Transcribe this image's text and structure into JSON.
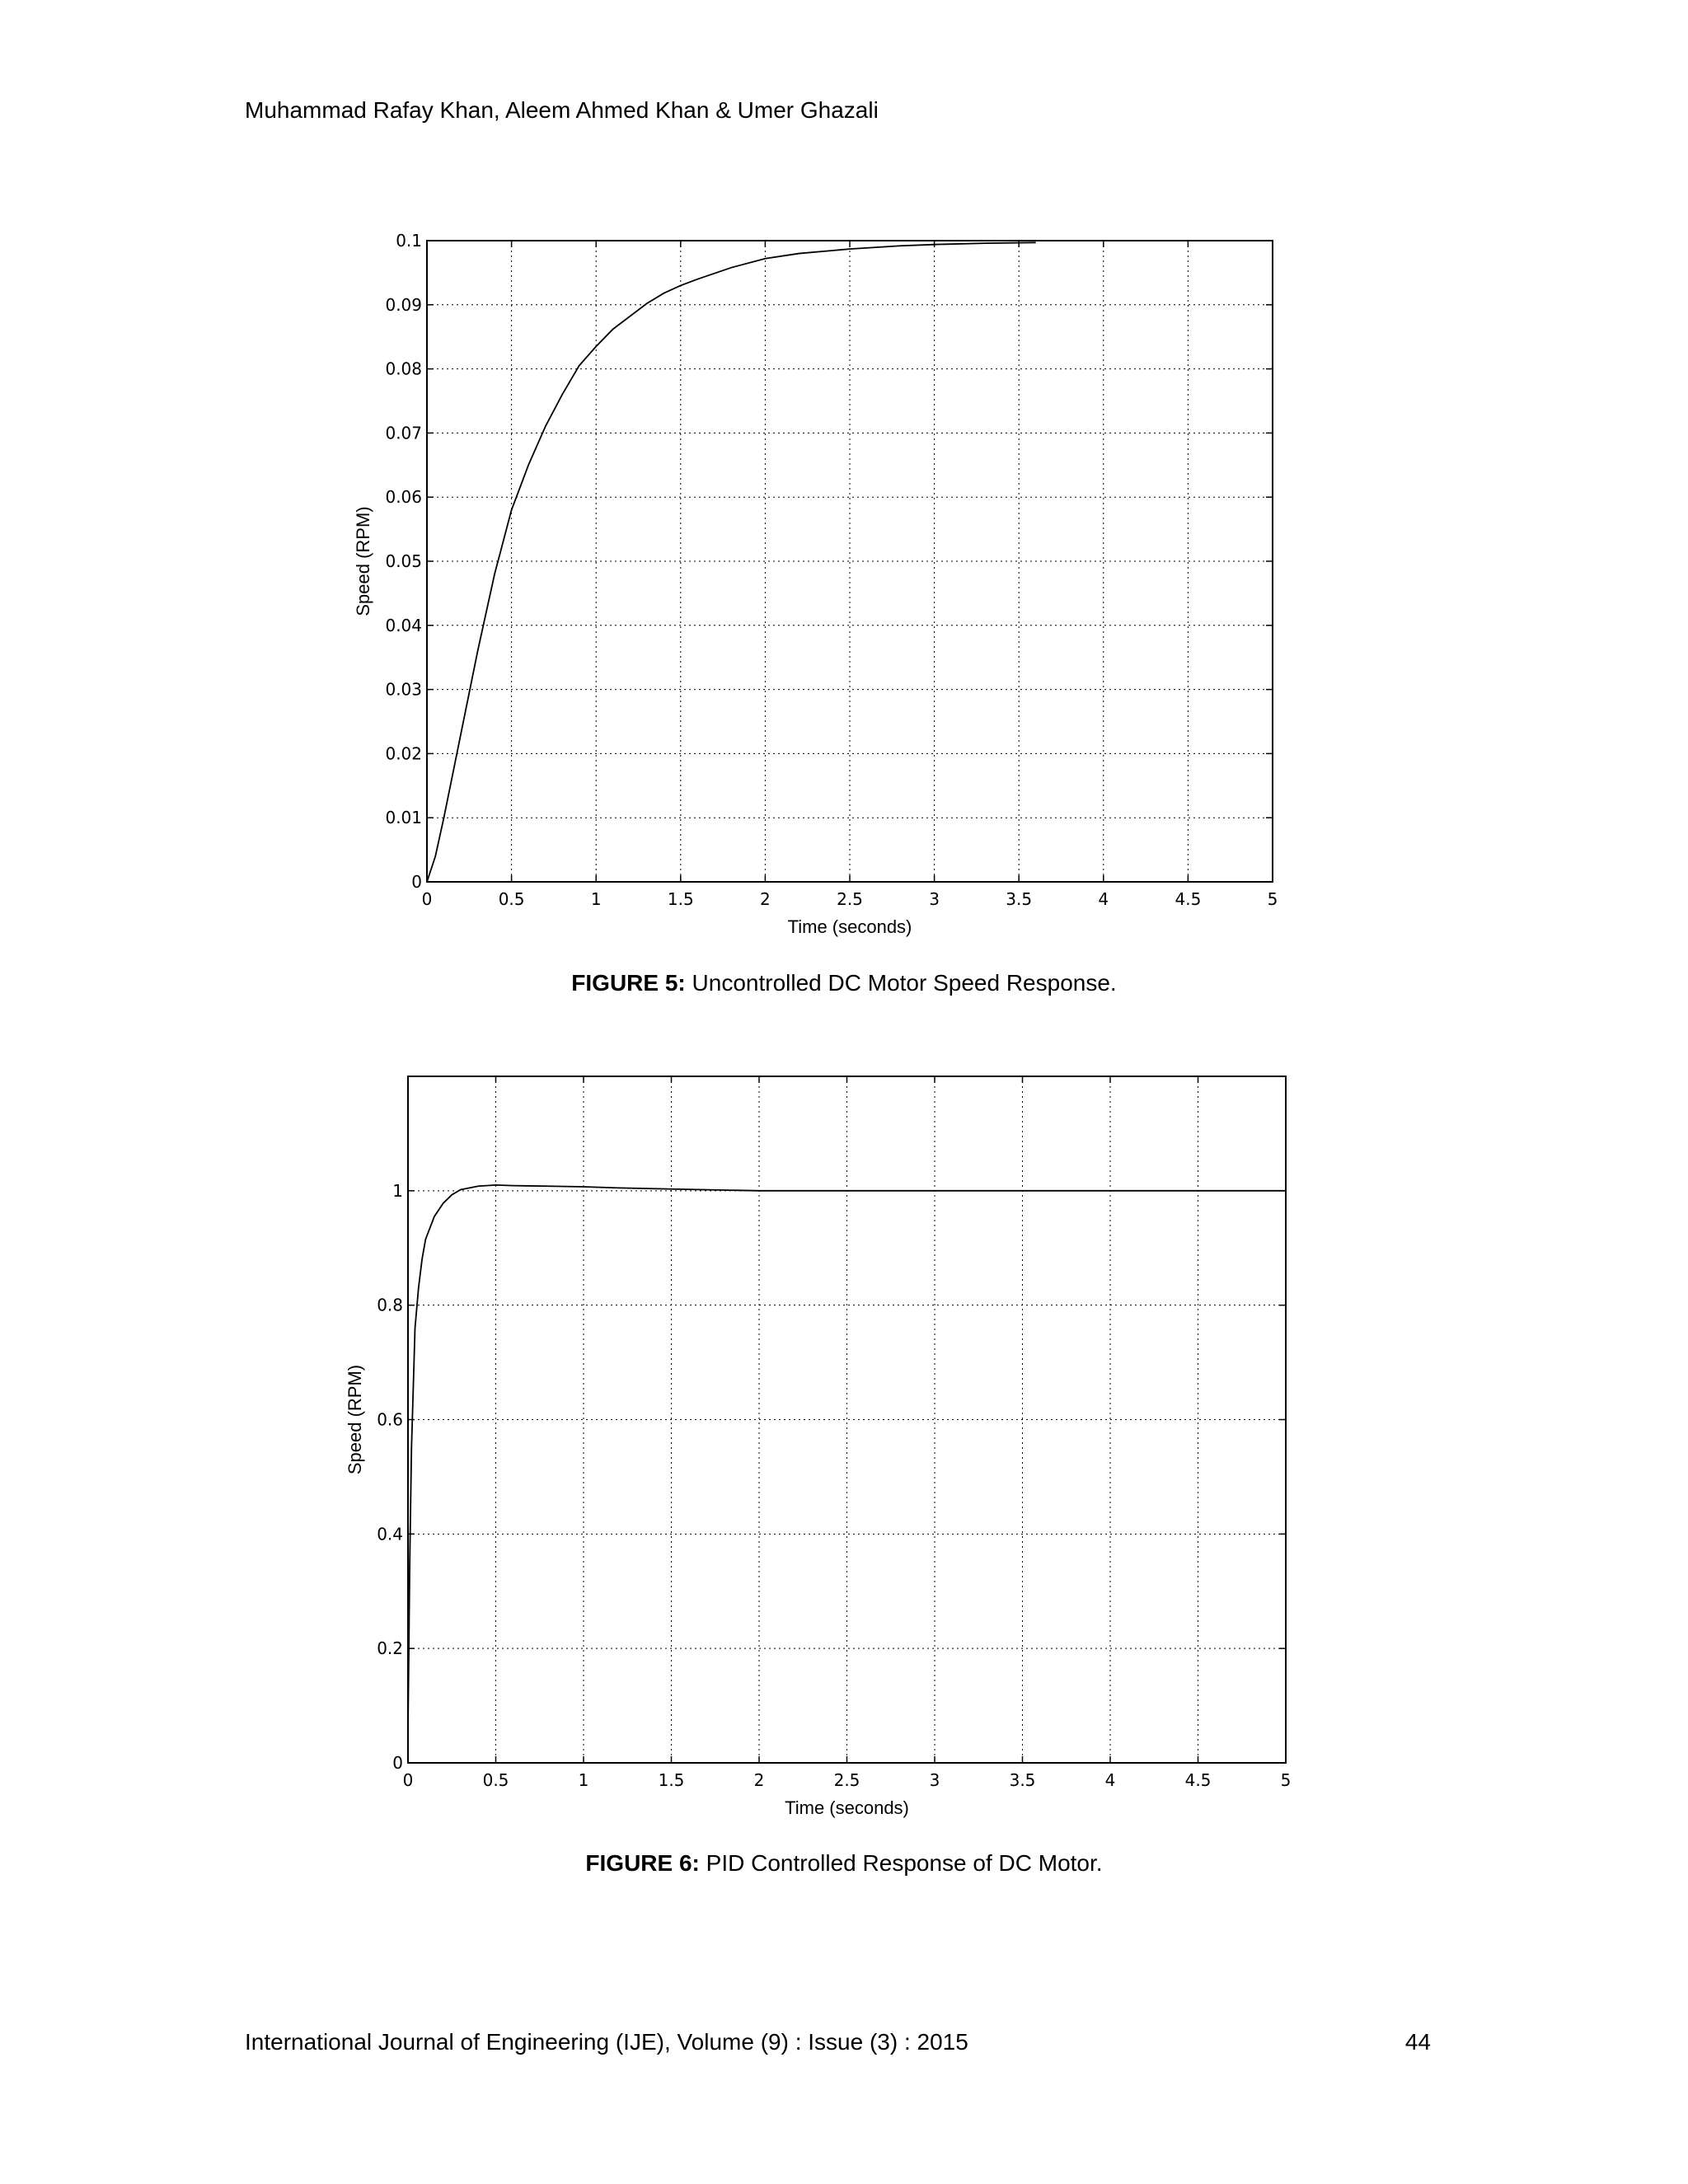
{
  "header": {
    "authors": "Muhammad Rafay Khan, Aleem Ahmed Khan & Umer Ghazali"
  },
  "figures": [
    {
      "number_label": "FIGURE 5:",
      "caption_text": " Uncontrolled DC Motor Speed Response."
    },
    {
      "number_label": "FIGURE 6:",
      "caption_text": " PID Controlled Response of DC Motor."
    }
  ],
  "footer": {
    "journal": "International Journal of Engineering (IJE), Volume (9) : Issue (3) : 2015",
    "page_number": "44"
  },
  "chart_data": [
    {
      "type": "line",
      "xlabel": "Time (seconds)",
      "ylabel": "Speed (RPM)",
      "xlim": [
        0,
        5
      ],
      "ylim": [
        0,
        0.1
      ],
      "grid": true,
      "x_ticks": [
        "0",
        "0.5",
        "1",
        "1.5",
        "2",
        "2.5",
        "3",
        "3.5",
        "4",
        "4.5",
        "5"
      ],
      "y_ticks": [
        "0",
        "0.01",
        "0.02",
        "0.03",
        "0.04",
        "0.05",
        "0.06",
        "0.07",
        "0.08",
        "0.09",
        "0.1"
      ],
      "series": [
        {
          "x": [
            0,
            0.05,
            0.1,
            0.2,
            0.3,
            0.4,
            0.5,
            0.6,
            0.7,
            0.8,
            0.9,
            1.0,
            1.1,
            1.2,
            1.3,
            1.4,
            1.5,
            1.6,
            1.8,
            2.0,
            2.2,
            2.5,
            2.8,
            3.0,
            3.3,
            3.6
          ],
          "y": [
            0,
            0.004,
            0.01,
            0.023,
            0.036,
            0.048,
            0.058,
            0.065,
            0.071,
            0.076,
            0.0805,
            0.0835,
            0.0862,
            0.0882,
            0.0902,
            0.0918,
            0.093,
            0.094,
            0.0958,
            0.0972,
            0.098,
            0.0987,
            0.0992,
            0.0994,
            0.0996,
            0.0997
          ]
        }
      ]
    },
    {
      "type": "line",
      "xlabel": "Time (seconds)",
      "ylabel": "Speed (RPM)",
      "xlim": [
        0,
        5
      ],
      "ylim": [
        0,
        1.2
      ],
      "grid": true,
      "x_ticks": [
        "0",
        "0.5",
        "1",
        "1.5",
        "2",
        "2.5",
        "3",
        "3.5",
        "4",
        "4.5",
        "5"
      ],
      "y_ticks": [
        "0",
        "0.2",
        "0.4",
        "0.6",
        "0.8",
        "1"
      ],
      "series": [
        {
          "x": [
            0,
            0.005,
            0.01,
            0.02,
            0.04,
            0.06,
            0.08,
            0.1,
            0.15,
            0.2,
            0.25,
            0.3,
            0.4,
            0.5,
            0.6,
            0.8,
            1.0,
            1.2,
            1.5,
            2.0,
            3.0,
            4.0,
            5.0
          ],
          "y": [
            0.06,
            0.2,
            0.35,
            0.55,
            0.76,
            0.83,
            0.88,
            0.915,
            0.955,
            0.978,
            0.993,
            1.002,
            1.008,
            1.01,
            1.009,
            1.008,
            1.007,
            1.005,
            1.003,
            1.0,
            1.0,
            1.0,
            1.0
          ]
        }
      ]
    }
  ]
}
